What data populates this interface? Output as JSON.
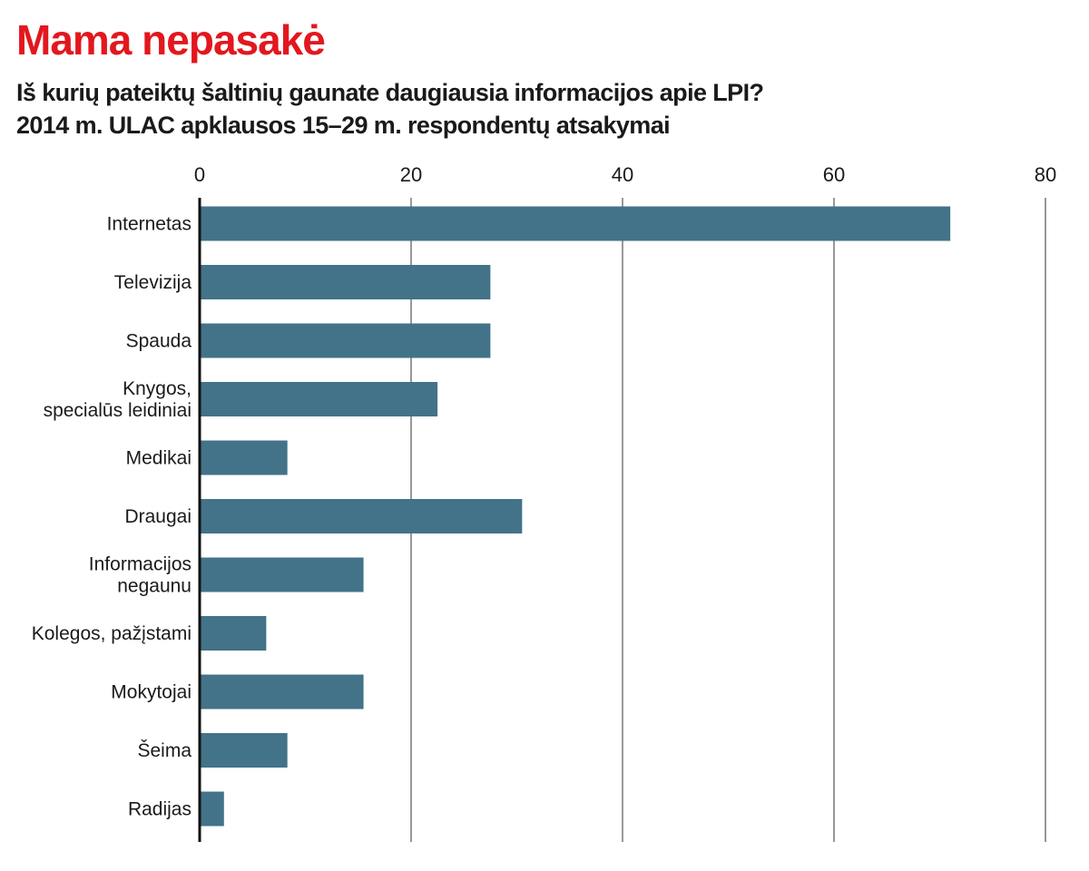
{
  "title": "Mama nepasakė",
  "subtitle_lines": [
    "Iš kurių pateiktų šaltinių gaunate daugiausia informacijos apie LPI?",
    "2014 m. ULAC apklausos 15–29 m. respondentų atsakymai"
  ],
  "colors": {
    "title": "#e3171e",
    "bar": "#427388",
    "grid": "#555555",
    "axis": "#111111",
    "text": "#1a1a1a"
  },
  "chart_data": {
    "type": "bar",
    "orientation": "horizontal",
    "categories": [
      [
        "Internetas"
      ],
      [
        "Televizija"
      ],
      [
        "Spauda"
      ],
      [
        "Knygos,",
        "specialūs leidiniai"
      ],
      [
        "Medikai"
      ],
      [
        "Draugai"
      ],
      [
        "Informacijos",
        "negaunu"
      ],
      [
        "Kolegos, pažįstami"
      ],
      [
        "Mokytojai"
      ],
      [
        "Šeima"
      ],
      [
        "Radijas"
      ]
    ],
    "values": [
      71,
      27.5,
      27.5,
      22.5,
      8.3,
      30.5,
      15.5,
      6.3,
      15.5,
      8.3,
      2.3
    ],
    "xlim": [
      0,
      80
    ],
    "ticks": [
      0,
      20,
      40,
      60,
      80
    ],
    "axis_position": "top",
    "grid": "vertical lines",
    "legend": "none",
    "xlabel": "",
    "ylabel": ""
  }
}
